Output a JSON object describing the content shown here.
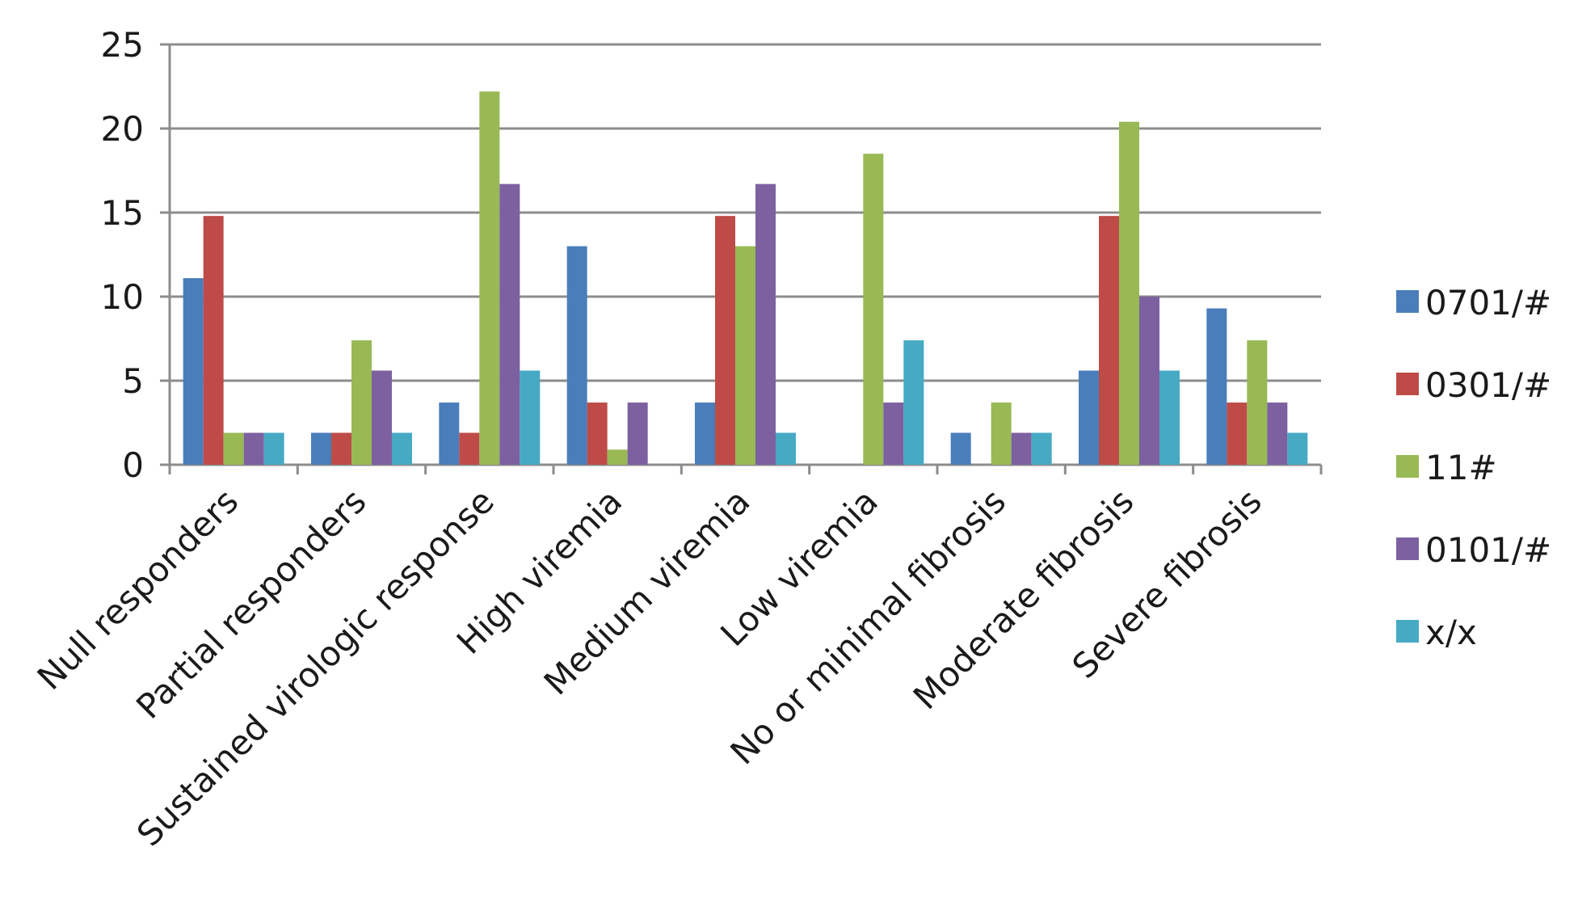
{
  "chart_data": {
    "type": "bar",
    "title": "",
    "xlabel": "",
    "ylabel": "",
    "ylim": [
      0,
      25
    ],
    "yticks": [
      0,
      5,
      10,
      15,
      20,
      25
    ],
    "grid": true,
    "legend_position": "right",
    "categories": [
      "Null responders",
      "Partial responders",
      "Sustained virologic response",
      "High viremia",
      "Medium viremia",
      "Low viremia",
      "No or minimal fibrosis",
      "Moderate fibrosis",
      "Severe fibrosis"
    ],
    "series": [
      {
        "name": "0701/#",
        "color": "#4a7ebb",
        "values": [
          11.1,
          1.9,
          3.7,
          13.0,
          3.7,
          0,
          1.9,
          5.6,
          9.3
        ]
      },
      {
        "name": "0301/#",
        "color": "#be4b48",
        "values": [
          14.8,
          1.9,
          1.9,
          3.7,
          14.8,
          0,
          0,
          14.8,
          3.7
        ]
      },
      {
        "name": "11#",
        "color": "#98b954",
        "values": [
          1.9,
          7.4,
          22.2,
          0.9,
          13.0,
          18.5,
          3.7,
          20.4,
          7.4
        ]
      },
      {
        "name": "0101/#",
        "color": "#7d60a0",
        "values": [
          1.9,
          5.6,
          16.7,
          3.7,
          16.7,
          3.7,
          1.9,
          10.0,
          3.7
        ]
      },
      {
        "name": "x/x",
        "color": "#46aac5",
        "values": [
          1.9,
          1.9,
          5.6,
          0,
          1.9,
          7.4,
          1.9,
          5.6,
          1.9
        ]
      }
    ]
  }
}
